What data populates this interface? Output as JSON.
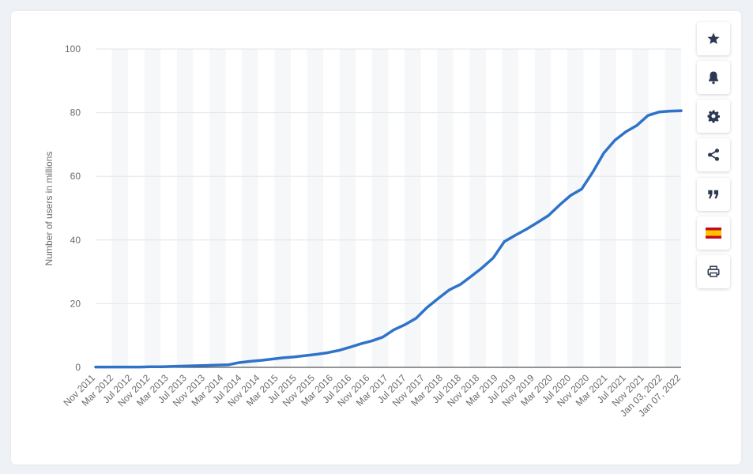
{
  "chart_data": {
    "type": "line",
    "title": "",
    "xlabel": "",
    "ylabel": "Number of users in millions",
    "ylim": [
      0,
      100
    ],
    "yticks": [
      0,
      20,
      40,
      60,
      80,
      100
    ],
    "grid": true,
    "x_tick_labels": [
      "Nov 2011",
      "Mar 2012",
      "Jul 2012",
      "Nov 2012",
      "Mar 2013",
      "Jul 2013",
      "Nov 2013",
      "Mar 2014",
      "Jul 2014",
      "Nov 2014",
      "Mar 2015",
      "Jul 2015",
      "Nov 2015",
      "Mar 2016",
      "Jul 2016",
      "Nov 2016",
      "Mar 2017",
      "Jul 2017",
      "Nov 2017",
      "Mar 2018",
      "Jul 2018",
      "Nov 2018",
      "Mar 2019",
      "Jul 2019",
      "Nov 2019",
      "Mar 2020",
      "Jul 2020",
      "Nov 2020",
      "Mar 2021",
      "Jul 2021",
      "Nov 2021",
      "Jan 03, 2022",
      "Jan 07, 2022"
    ],
    "series": [
      {
        "color": "#2f73c9",
        "values": [
          0.1,
          0.1,
          0.1,
          0.1,
          0.1,
          0.2,
          0.2,
          0.3,
          0.4,
          0.5,
          0.6,
          0.7,
          0.8,
          1.5,
          1.9,
          2.2,
          2.6,
          3.0,
          3.3,
          3.7,
          4.1,
          4.6,
          5.3,
          6.3,
          7.4,
          8.3,
          9.5,
          11.8,
          13.4,
          15.4,
          18.8,
          21.6,
          24.3,
          26.0,
          28.6,
          31.3,
          34.4,
          39.5,
          41.5,
          43.4,
          45.5,
          47.7,
          51.0,
          54.0,
          56.0,
          61.3,
          67.3,
          71.3,
          74.0,
          76.0,
          79.1,
          80.2,
          80.5,
          80.6
        ]
      }
    ]
  },
  "toolbar": {
    "items": [
      {
        "icon": "star-icon"
      },
      {
        "icon": "bell-icon"
      },
      {
        "icon": "gear-icon"
      },
      {
        "icon": "share-icon"
      },
      {
        "icon": "quote-icon"
      },
      {
        "icon": "spain-flag-icon"
      },
      {
        "icon": "print-icon"
      }
    ]
  }
}
